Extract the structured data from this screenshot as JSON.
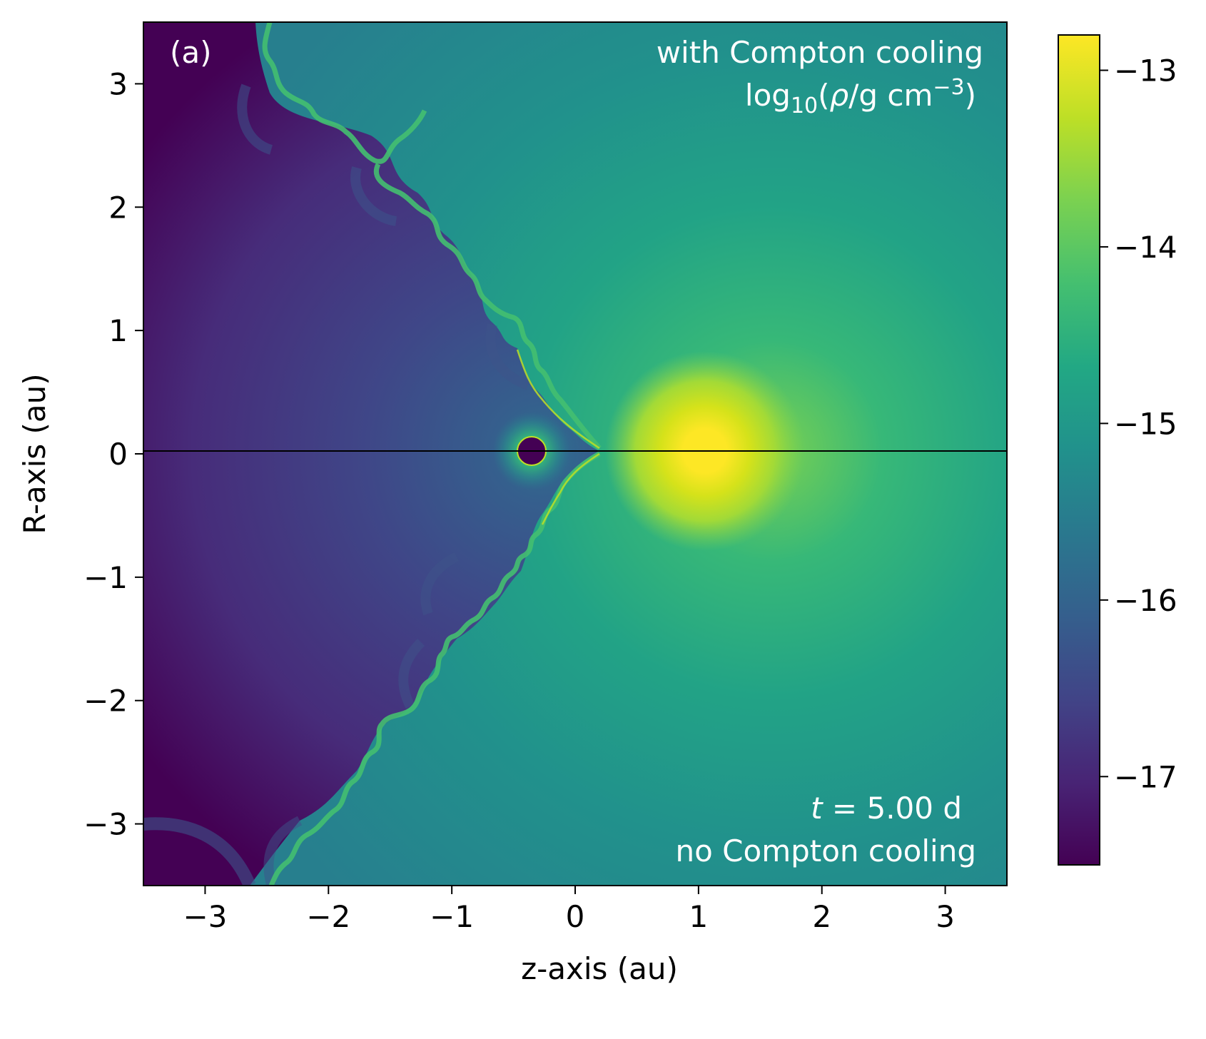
{
  "chart_data": {
    "type": "heatmap",
    "panel_label": "(a)",
    "xlabel": "z-axis (au)",
    "ylabel": "R-axis (au)",
    "xlim": [
      -3.5,
      3.5
    ],
    "ylim": [
      -3.5,
      3.5
    ],
    "xticks": [
      -3,
      -2,
      -1,
      0,
      1,
      2,
      3
    ],
    "yticks": [
      -3,
      -2,
      -1,
      0,
      1,
      2,
      3
    ],
    "annotations": {
      "top_right_line1": "with Compton cooling",
      "top_right_quantity": "log",
      "top_right_subscript": "10",
      "top_right_rho": "ρ",
      "top_right_units": "/g cm",
      "top_right_exponent": "−3",
      "bottom_right_t": "t",
      "bottom_right_time": " = 5.00 d",
      "bottom_right_line2": "no Compton cooling"
    },
    "colorbar": {
      "colormap": "viridis",
      "range": [
        -17.5,
        -12.8
      ],
      "ticks": [
        -13,
        -14,
        -15,
        -16,
        -17
      ]
    },
    "features": {
      "horizontal_line_at_R": 0,
      "dense_source_center": [
        1.07,
        0
      ],
      "dense_source_peak_log_density": -12.8,
      "low_density_core_center": [
        -0.34,
        0
      ],
      "low_density_core_log_density": -17.5,
      "background_log_density_range": [
        -17.4,
        -15.2
      ]
    },
    "colors": {
      "viridis_dark": "#440154",
      "viridis_yellow": "#fde725",
      "axis_line": "#000000",
      "annotation_text": "#ffffff"
    }
  }
}
